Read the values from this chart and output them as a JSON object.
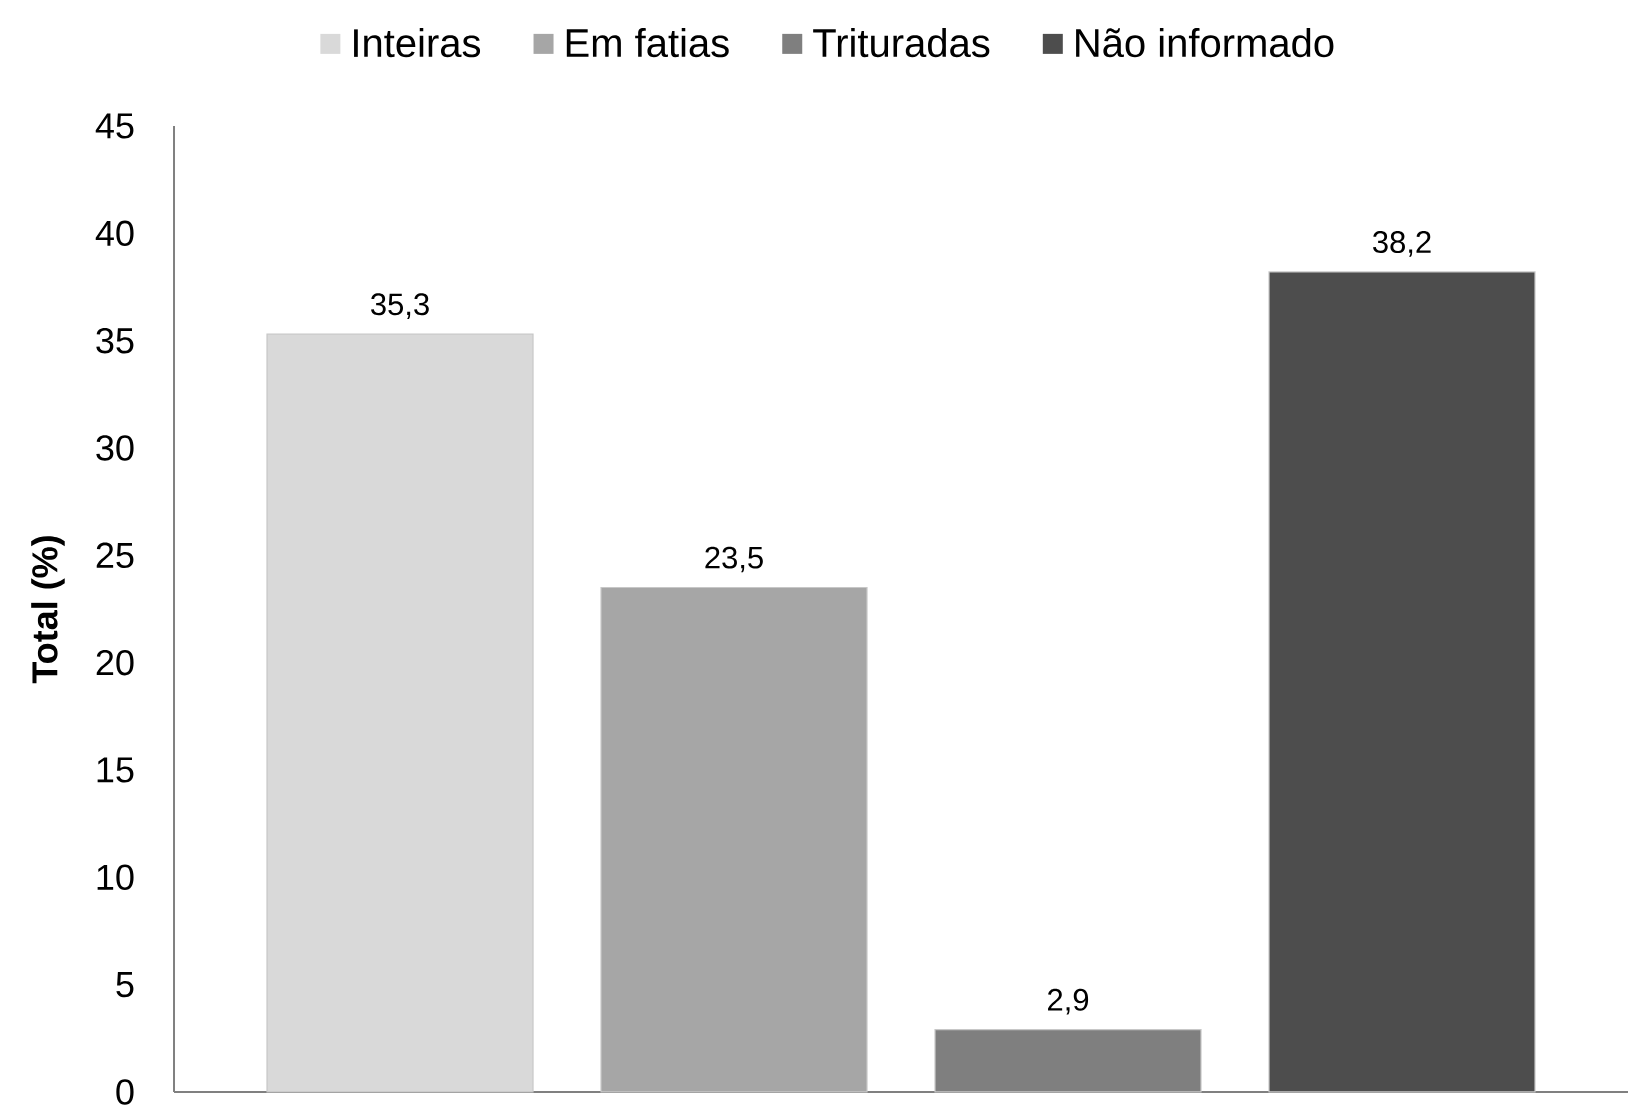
{
  "chart_data": {
    "type": "bar",
    "categories": [
      null
    ],
    "ylabel": "Total (%)",
    "ylim": [
      0,
      45
    ],
    "yticks": [
      0,
      5,
      10,
      15,
      20,
      25,
      30,
      35,
      40,
      45
    ],
    "legend": "top",
    "series": [
      {
        "name": "Inteiras",
        "color": "#d9d9d9",
        "values": [
          35.3
        ],
        "value_labels": [
          "35,3"
        ]
      },
      {
        "name": "Em fatias",
        "color": "#a6a6a6",
        "values": [
          23.5
        ],
        "value_labels": [
          "23,5"
        ]
      },
      {
        "name": "Trituradas",
        "color": "#7f7f7f",
        "values": [
          2.9
        ],
        "value_labels": [
          "2,9"
        ]
      },
      {
        "name": "Não informado",
        "color": "#4d4d4d",
        "values": [
          38.2
        ],
        "value_labels": [
          "38,2"
        ]
      }
    ]
  }
}
